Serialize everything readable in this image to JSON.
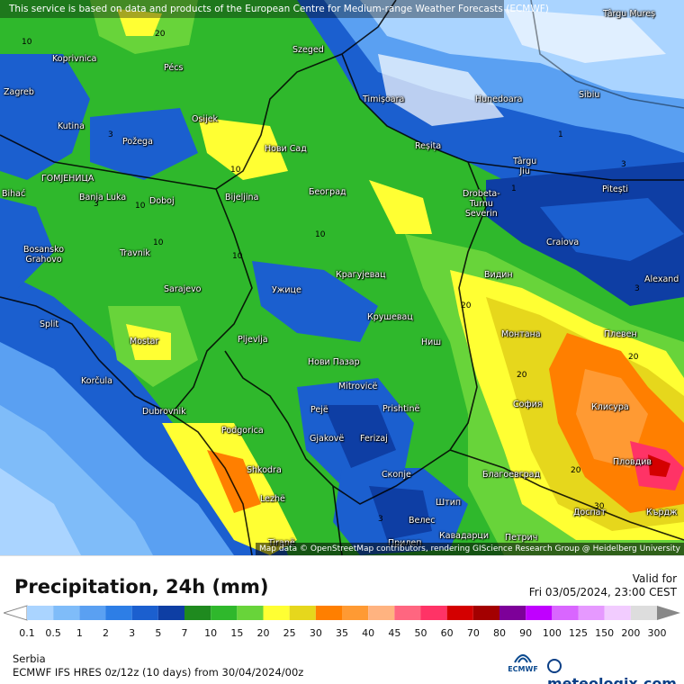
{
  "map": {
    "attribution_top": "This service is based on data and products of the European Centre for Medium-range Weather Forecasts (ECMWF)",
    "attribution_bottom": "Map data © OpenStreetMap contributors, rendering GIScience Research Group @ Heidelberg University",
    "cities": [
      {
        "name": "Târgu\nMureș"
      },
      {
        "name": "Szeged"
      },
      {
        "name": "Koprivnica"
      },
      {
        "name": "Pécs"
      },
      {
        "name": "Zagreb"
      },
      {
        "name": "Timișoara"
      },
      {
        "name": "Hunedoara"
      },
      {
        "name": "Sibiu"
      },
      {
        "name": "Osijek"
      },
      {
        "name": "Kutina"
      },
      {
        "name": "Požega"
      },
      {
        "name": "Нови Сад"
      },
      {
        "name": "Reșița"
      },
      {
        "name": "Târgu\nJiu"
      },
      {
        "name": "Pitești"
      },
      {
        "name": "ГОМЈЕНИЦА"
      },
      {
        "name": "Banja Luka"
      },
      {
        "name": "Doboj"
      },
      {
        "name": "Bijeljina"
      },
      {
        "name": "Београд"
      },
      {
        "name": "Drobeta-\nTurnu\nSeverin"
      },
      {
        "name": "Bihać"
      },
      {
        "name": "Craiova"
      },
      {
        "name": "Bosansko\nGrahovo"
      },
      {
        "name": "Travnik"
      },
      {
        "name": "Крагујевац"
      },
      {
        "name": "Видин"
      },
      {
        "name": "Alexand"
      },
      {
        "name": "Sarajevo"
      },
      {
        "name": "Ужице"
      },
      {
        "name": "Split"
      },
      {
        "name": "Крушевац"
      },
      {
        "name": "Mostar"
      },
      {
        "name": "Pljevlja"
      },
      {
        "name": "Ниш"
      },
      {
        "name": "Монтана"
      },
      {
        "name": "Плевен"
      },
      {
        "name": "Нови Пазар"
      },
      {
        "name": "Korčula"
      },
      {
        "name": "Mitrovicë"
      },
      {
        "name": "Dubrovnik"
      },
      {
        "name": "Pejë"
      },
      {
        "name": "Prishtinë"
      },
      {
        "name": "София"
      },
      {
        "name": "Клисура"
      },
      {
        "name": "Podgorica"
      },
      {
        "name": "Gjakovë"
      },
      {
        "name": "Ferizaj"
      },
      {
        "name": "Shkodra"
      },
      {
        "name": "Скопје"
      },
      {
        "name": "Благоевград"
      },
      {
        "name": "Пловдив"
      },
      {
        "name": "Lezhë"
      },
      {
        "name": "Штип"
      },
      {
        "name": "Велес"
      },
      {
        "name": "Доспат"
      },
      {
        "name": "Кърдж"
      },
      {
        "name": "Tiranë"
      },
      {
        "name": "Прилеп"
      },
      {
        "name": "Кавадарци"
      },
      {
        "name": "Петрич"
      }
    ],
    "contour_labels": [
      "20",
      "10",
      "10",
      "10",
      "3",
      "10",
      "10",
      "20",
      "20",
      "20",
      "3",
      "1",
      "1",
      "3",
      "3",
      "20",
      "30",
      "3",
      "10"
    ]
  },
  "legend": {
    "title": "Precipitation, 24h (mm)",
    "valid_label": "Valid for",
    "valid_date": "Fri 03/05/2024, 23:00 CEST",
    "region": "Serbia",
    "model_info": "ECMWF IFS HRES 0z/12z (10 days)  from  30/04/2024/00z",
    "ecmwf_logo": "ECMWF",
    "brand": "meteologix.com",
    "scale_labels": [
      "0.1",
      "0.5",
      "1",
      "2",
      "3",
      "5",
      "7",
      "10",
      "15",
      "20",
      "25",
      "30",
      "35",
      "40",
      "45",
      "50",
      "60",
      "70",
      "80",
      "90",
      "100",
      "125",
      "150",
      "200",
      "300"
    ],
    "scale_colors": [
      "#aad4ff",
      "#7fbcf9",
      "#5aa0f2",
      "#2d7ee6",
      "#1b5fcf",
      "#0e3ea4",
      "#1f8a1f",
      "#2fb82c",
      "#68d43a",
      "#ffff33",
      "#e6d71c",
      "#ff7f00",
      "#ff9a33",
      "#ffb380",
      "#ff6680",
      "#ff3366",
      "#d40000",
      "#a30000",
      "#7d0099",
      "#c000ff",
      "#d966ff",
      "#e699ff",
      "#f2ccff",
      "#dddddd"
    ]
  }
}
